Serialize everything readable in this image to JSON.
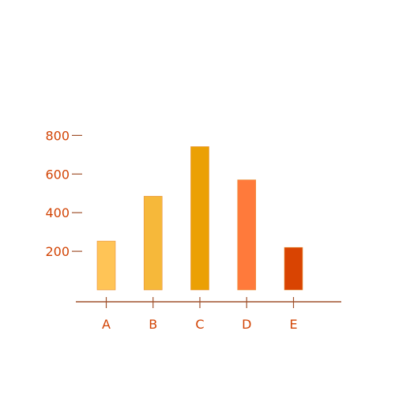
{
  "chart_data": {
    "type": "bar",
    "categories": [
      "A",
      "B",
      "C",
      "D",
      "E"
    ],
    "values": [
      253,
      485,
      742,
      570,
      220
    ],
    "colors": [
      "#FFC456",
      "#F6B83A",
      "#EBA005",
      "#FF7A3B",
      "#D94402"
    ],
    "yticks": [
      200,
      400,
      600,
      800
    ],
    "ylim": [
      0,
      800
    ],
    "grid": false,
    "axis_color": "#A0522D",
    "label_color": "#D24405"
  }
}
